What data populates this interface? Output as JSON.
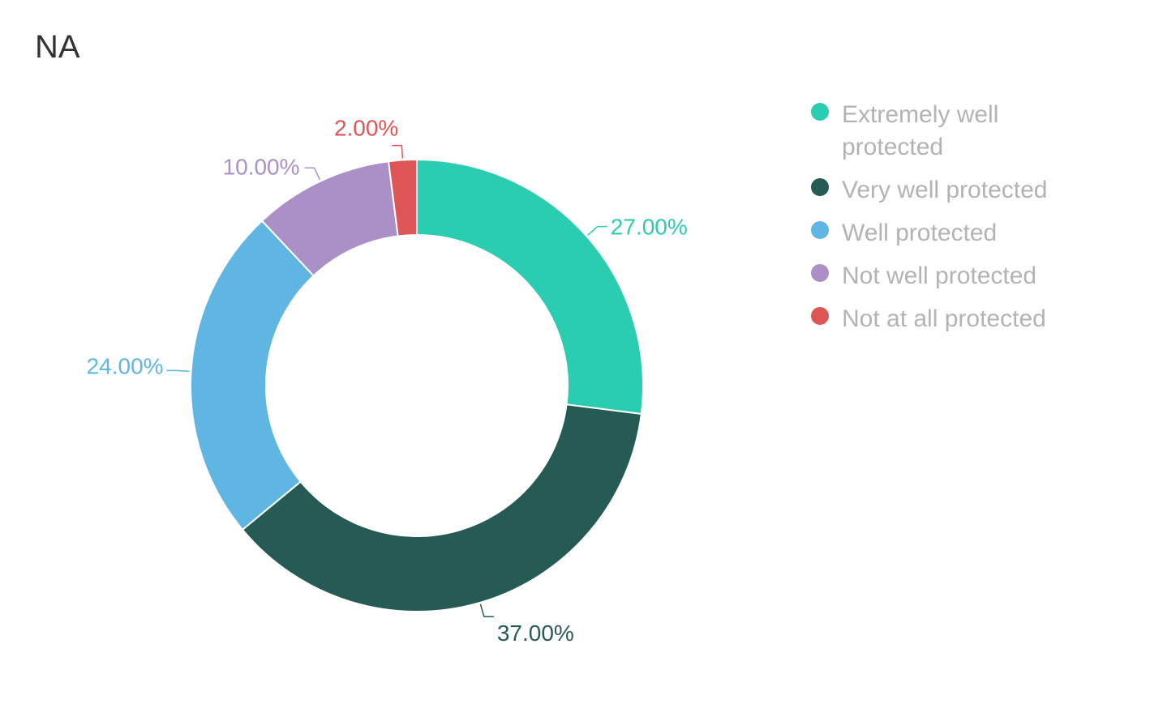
{
  "chart_data": {
    "type": "pie",
    "variant": "donut",
    "title": "NA",
    "categories": [
      "Extremely well protected",
      "Very well protected",
      "Well protected",
      "Not well protected",
      "Not at all protected"
    ],
    "values": [
      27,
      37,
      24,
      10,
      2
    ],
    "value_labels": [
      "27.00%",
      "37.00%",
      "24.00%",
      "10.00%",
      "2.00%"
    ],
    "colors": [
      "#2bcdb1",
      "#265b55",
      "#5fb6e2",
      "#aa90c6",
      "#dd5555"
    ],
    "legend": {
      "placement": "right",
      "text_color": "#b3b3b3"
    }
  }
}
